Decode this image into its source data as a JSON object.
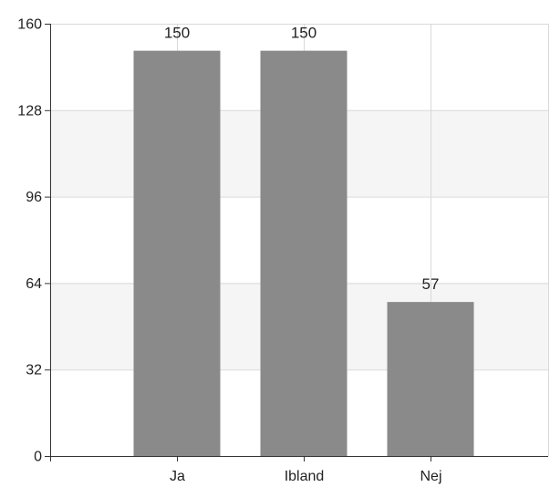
{
  "chart_data": {
    "type": "bar",
    "categories": [
      "Ja",
      "Ibland",
      "Nej"
    ],
    "values": [
      150,
      150,
      57
    ],
    "data_labels": [
      "150",
      "150",
      "57"
    ],
    "ylim": [
      0,
      160
    ],
    "y_ticks": [
      0,
      32,
      64,
      96,
      128,
      160
    ],
    "y_tick_labels": [
      "0",
      "32",
      "64",
      "96",
      "128",
      "160"
    ],
    "grid": true,
    "bar_color": "#8a8a8a",
    "band_color": "#f5f5f5",
    "grid_color": "#d9d9d9",
    "axis_color": "#333333",
    "title": "",
    "xlabel": "",
    "ylabel": ""
  }
}
